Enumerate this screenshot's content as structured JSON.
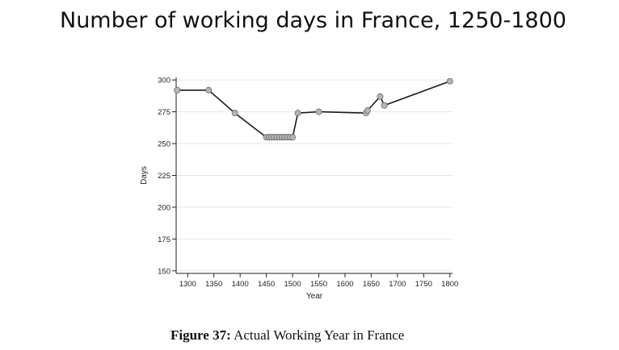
{
  "slide": {
    "title": "Number of working days in France, 1250-1800"
  },
  "figure": {
    "caption_label": "Figure 37:",
    "caption_text": "Actual Working Year in France"
  },
  "chart_data": {
    "type": "line",
    "title": "",
    "xlabel": "Year",
    "ylabel": "Days",
    "xlim": [
      1278,
      1805
    ],
    "ylim": [
      148,
      302
    ],
    "xticks": [
      1300,
      1350,
      1400,
      1450,
      1500,
      1550,
      1600,
      1650,
      1700,
      1750,
      1800
    ],
    "yticks": [
      150,
      175,
      200,
      225,
      250,
      275,
      300
    ],
    "grid": "horizontal",
    "legend": "none",
    "series": [
      {
        "x": [
          1280,
          1340,
          1390,
          1450,
          1455,
          1460,
          1465,
          1470,
          1475,
          1480,
          1485,
          1490,
          1495,
          1500,
          1510,
          1550,
          1640,
          1643,
          1667,
          1675,
          1800
        ],
        "y": [
          292,
          292,
          274,
          255,
          255,
          255,
          255,
          255,
          255,
          255,
          255,
          255,
          255,
          255,
          274,
          275,
          274,
          276,
          287,
          280,
          299
        ]
      }
    ],
    "colors": {
      "line": "#1a1a1a",
      "marker_fill": "#b4b4b4",
      "marker_stroke": "#6a6a6a",
      "grid": "#e6e6e6",
      "axis": "#222222"
    }
  }
}
